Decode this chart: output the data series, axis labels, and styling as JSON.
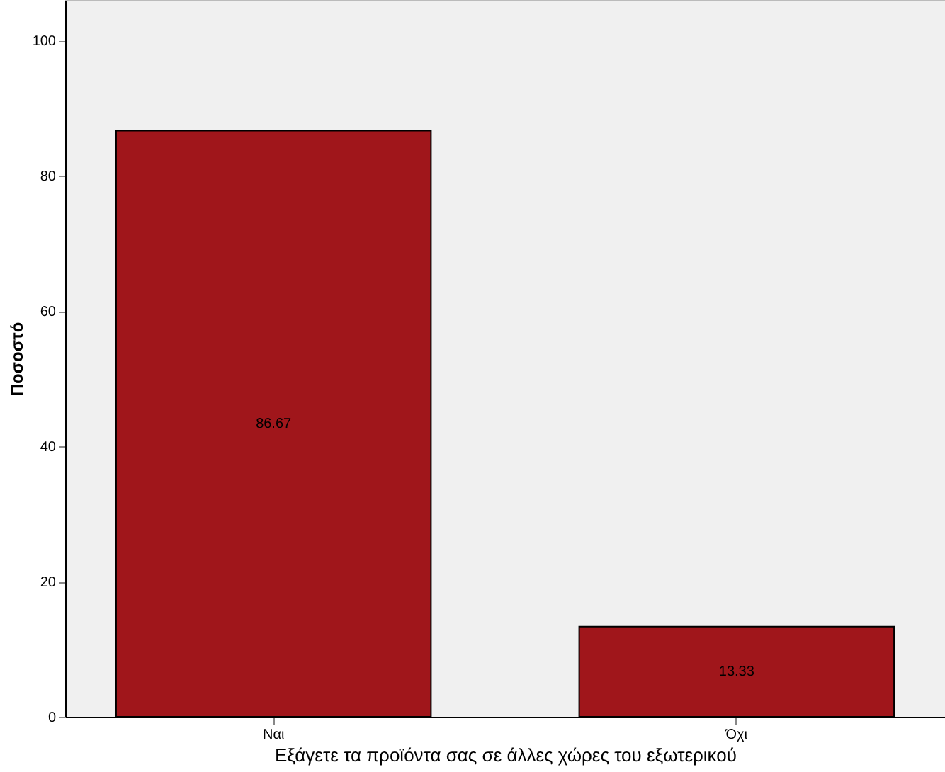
{
  "chart_data": {
    "type": "bar",
    "xlabel": "Εξάγετε τα προϊόντα σας σε άλλες χώρες του εξωτερικού",
    "ylabel": "Ποσοστό",
    "categories": [
      "Ναι",
      "Όχι"
    ],
    "values": [
      86.67,
      13.33
    ],
    "color": "#a0161b",
    "ylim": [
      0,
      106
    ],
    "yticks": [
      0,
      20,
      40,
      60,
      80,
      100
    ],
    "grid": false,
    "data_labels": true
  }
}
